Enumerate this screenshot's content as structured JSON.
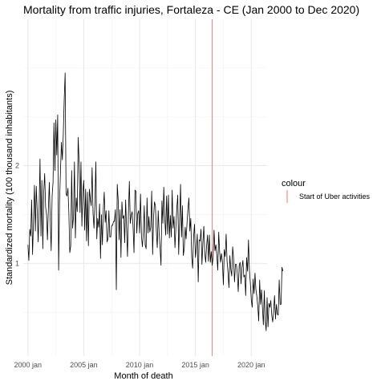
{
  "chart_data": {
    "type": "line",
    "title": "Mortality from traffic injuries, Fortaleza - CE (Jan 2000 to Dec 2020)",
    "xlabel": "Month of death",
    "ylabel": "Standardized mortality (100 thousand inhabitants)",
    "x_tick_labels": [
      "2000 jan",
      "2005 jan",
      "2010 jan",
      "2015 jan",
      "2020 jan"
    ],
    "y_tick_labels": [
      "1",
      "2"
    ],
    "xlim": [
      "1999-08",
      "2021-06"
    ],
    "ylim": [
      0.05,
      3.5
    ],
    "grid": true,
    "legend": {
      "title": "colour",
      "placement": "right",
      "entries": [
        {
          "label": "Start of Uber activities",
          "color": "#F8766D"
        }
      ]
    },
    "vline": {
      "x": "2016-07",
      "color": "#F8766D",
      "label": "Start of Uber activities"
    },
    "series": [
      {
        "color": "#000000",
        "x_start": "2000-01",
        "x_step": "1 month",
        "values": [
          1.19,
          1.03,
          1.35,
          1.28,
          1.65,
          1.09,
          1.44,
          1.8,
          1.33,
          1.79,
          1.54,
          1.22,
          1.54,
          2.07,
          1.28,
          1.85,
          1.15,
          1.73,
          1.92,
          1.58,
          1.5,
          1.24,
          1.56,
          1.83,
          1.43,
          1.13,
          1.69,
          1.83,
          2.44,
          1.95,
          2.47,
          2.11,
          2.52,
          0.93,
          1.64,
          1.95,
          2.24,
          2.06,
          2.32,
          2.68,
          2.95,
          1.71,
          1.69,
          1.77,
          1.52,
          1.11,
          1.18,
          1.95,
          1.36,
          1.48,
          2.04,
          1.26,
          1.67,
          1.53,
          2.29,
          2.04,
          1.52,
          2.04,
          1.38,
          1.73,
          1.85,
          1.34,
          1.76,
          1.23,
          1.73,
          1.18,
          1.76,
          1.66,
          1.59,
          1.98,
          1.51,
          1.36,
          1.61,
          2.04,
          1.25,
          1.46,
          1.37,
          1.61,
          1.05,
          1.5,
          1.19,
          1.55,
          1.73,
          1.42,
          1.54,
          1.22,
          1.25,
          1.54,
          1.27,
          1.27,
          1.39,
          1.39,
          1.43,
          1.43,
          1.55,
          0.73,
          1.81,
          1.65,
          1.24,
          1.55,
          1.06,
          1.63,
          1.46,
          1.49,
          1.21,
          1.65,
          1.36,
          1.07,
          1.51,
          1.84,
          1.41,
          1.49,
          1.53,
          1.37,
          1.11,
          1.75,
          1.74,
          1.31,
          1.51,
          1.54,
          1.31,
          1.71,
          1.28,
          1.17,
          1.31,
          1.59,
          1.19,
          1.15,
          1.67,
          1.31,
          1.48,
          1.32,
          1.37,
          1.74,
          1.09,
          1.47,
          1.63,
          1.59,
          1.33,
          1.16,
          1.54,
          1.31,
          1.16,
          0.98,
          1.64,
          1.41,
          1.78,
          1.47,
          1.29,
          1.69,
          1.3,
          1.7,
          1.26,
          1.49,
          1.27,
          1.75,
          1.36,
          1.48,
          1.16,
          1.37,
          1.57,
          1.7,
          1.09,
          1.43,
          1.81,
          1.27,
          1.59,
          1.08,
          1.15,
          1.37,
          1.25,
          1.42,
          1.56,
          1.67,
          1.33,
          1.46,
          1.06,
          0.95,
          1.27,
          1.4,
          1.06,
          1.15,
          1.3,
          0.81,
          1.24,
          1.23,
          1.35,
          0.99,
          1.21,
          1.38,
          1.11,
          1.01,
          1.18,
          1.29,
          1.02,
          1.29,
          1.01,
          1.12,
          0.98,
          1.06,
          1.34,
          1.13,
          1.19,
          1.08,
          0.93,
          1.32,
          1.12,
          1.01,
          1.1,
          1.02,
          0.78,
          1.14,
          1.07,
          1.3,
          1.02,
          0.91,
          0.75,
          1.08,
          0.94,
          0.87,
          1.17,
          1.05,
          0.81,
          0.99,
          0.99,
          0.89,
          0.71,
          0.98,
          1.01,
          0.79,
          0.96,
          1.03,
          0.86,
          0.88,
          0.67,
          1.06,
          0.92,
          1.24,
          0.93,
          0.8,
          0.63,
          0.55,
          0.84,
          0.69,
          0.9,
          0.73,
          0.66,
          0.56,
          0.41,
          0.83,
          0.58,
          0.73,
          0.55,
          0.37,
          0.72,
          0.41,
          0.31,
          0.65,
          0.35,
          0.59,
          0.55,
          0.62,
          0.47,
          0.4,
          0.51,
          0.67,
          0.43,
          0.58,
          0.48,
          0.47,
          0.83,
          0.58,
          0.58,
          0.96,
          0.92
        ]
      }
    ]
  }
}
